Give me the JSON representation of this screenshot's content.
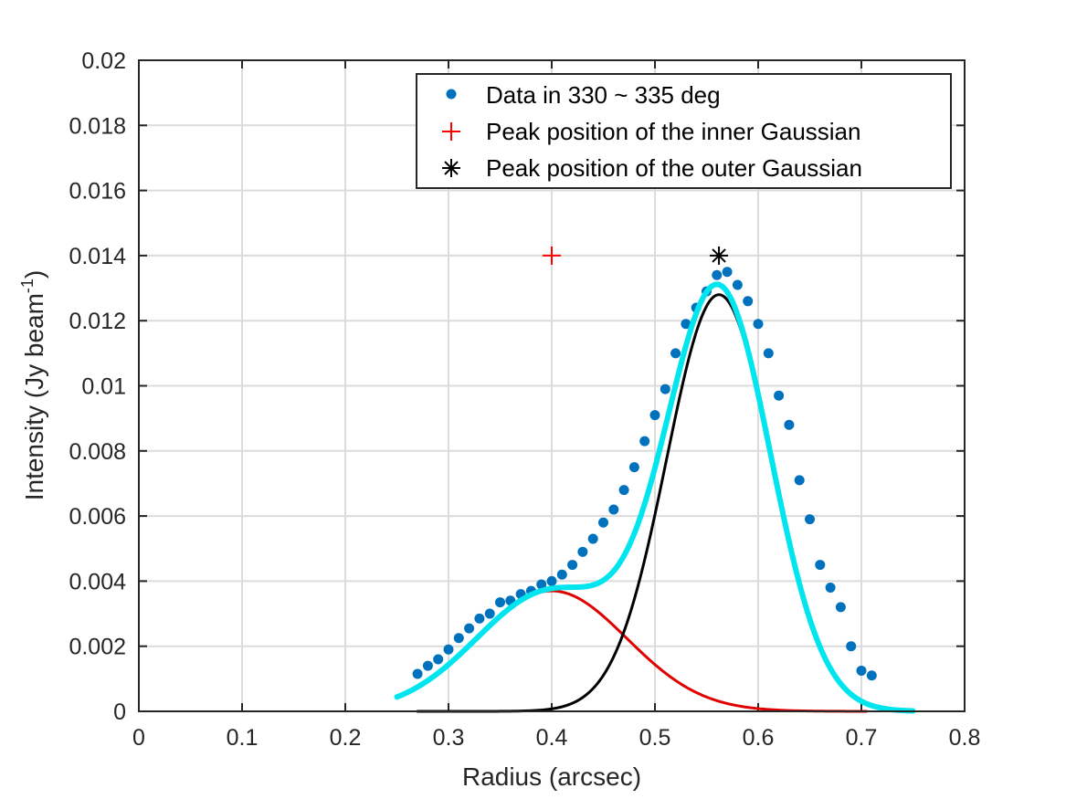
{
  "chart_data": {
    "type": "line",
    "title": "",
    "xlabel": "Radius (arcsec)",
    "ylabel_main": "Intensity (Jy beam",
    "ylabel_sup": "-1",
    "ylabel_close": ")",
    "xlim": [
      0,
      0.8
    ],
    "ylim": [
      0,
      0.02
    ],
    "xticks": [
      0,
      0.1,
      0.2,
      0.3,
      0.4,
      0.5,
      0.6,
      0.7,
      0.8
    ],
    "xtick_labels": [
      "0",
      "0.1",
      "0.2",
      "0.3",
      "0.4",
      "0.5",
      "0.6",
      "0.7",
      "0.8"
    ],
    "yticks": [
      0,
      0.002,
      0.004,
      0.006,
      0.008,
      0.01,
      0.012,
      0.014,
      0.016,
      0.018,
      0.02
    ],
    "ytick_labels": [
      "0",
      "0.002",
      "0.004",
      "0.006",
      "0.008",
      "0.01",
      "0.012",
      "0.014",
      "0.016",
      "0.018",
      "0.02"
    ],
    "grid": true,
    "legend_position": "top-right",
    "legend": [
      {
        "label": "Data in 330 ~ 335 deg",
        "marker": "dot",
        "color": "#0072BD"
      },
      {
        "label": "Peak position of the inner Gaussian",
        "marker": "plus",
        "color": "#FF0000"
      },
      {
        "label": "Peak position of the outer Gaussian",
        "marker": "asterisk",
        "color": "#000000"
      }
    ],
    "data_points": {
      "name": "Data in 330 ~ 335 deg",
      "color": "#0072BD",
      "x": [
        0.27,
        0.28,
        0.29,
        0.3,
        0.31,
        0.32,
        0.33,
        0.34,
        0.35,
        0.36,
        0.37,
        0.38,
        0.39,
        0.4,
        0.41,
        0.42,
        0.43,
        0.44,
        0.45,
        0.46,
        0.47,
        0.48,
        0.49,
        0.5,
        0.51,
        0.52,
        0.53,
        0.54,
        0.55,
        0.56,
        0.57,
        0.58,
        0.59,
        0.6,
        0.61,
        0.62,
        0.63,
        0.64,
        0.65,
        0.66,
        0.67,
        0.68,
        0.69,
        0.7,
        0.71
      ],
      "y": [
        0.00115,
        0.0014,
        0.0016,
        0.0019,
        0.00225,
        0.00255,
        0.00285,
        0.003,
        0.00335,
        0.0034,
        0.0036,
        0.0037,
        0.0039,
        0.004,
        0.0042,
        0.0045,
        0.0049,
        0.0053,
        0.0058,
        0.0062,
        0.0068,
        0.0075,
        0.0083,
        0.0091,
        0.0099,
        0.011,
        0.0119,
        0.0124,
        0.0129,
        0.0134,
        0.0135,
        0.0131,
        0.0126,
        0.0119,
        0.011,
        0.0097,
        0.0088,
        0.0071,
        0.0059,
        0.0045,
        0.0038,
        0.0032,
        0.002,
        0.00125,
        0.0011
      ]
    },
    "series": [
      {
        "name": "Inner Gaussian",
        "color": "#E00000",
        "width": 3,
        "amplitude": 0.0037,
        "center": 0.4,
        "sigma": 0.0727,
        "x_range": [
          0.27,
          0.705
        ]
      },
      {
        "name": "Outer Gaussian",
        "color": "#000000",
        "width": 3,
        "amplitude": 0.0128,
        "center": 0.562,
        "sigma": 0.0506,
        "x_range": [
          0.27,
          0.705
        ]
      },
      {
        "name": "Total fit",
        "color": "#00E5EE",
        "width": 6,
        "components": [
          "Inner Gaussian",
          "Outer Gaussian"
        ],
        "x_range": [
          0.25,
          0.75
        ]
      }
    ],
    "peak_markers": [
      {
        "name": "Peak position of the inner Gaussian",
        "x": 0.4,
        "y": 0.014,
        "marker": "plus",
        "color": "#FF0000"
      },
      {
        "name": "Peak position of the outer Gaussian",
        "x": 0.562,
        "y": 0.014,
        "marker": "asterisk",
        "color": "#000000"
      }
    ]
  }
}
